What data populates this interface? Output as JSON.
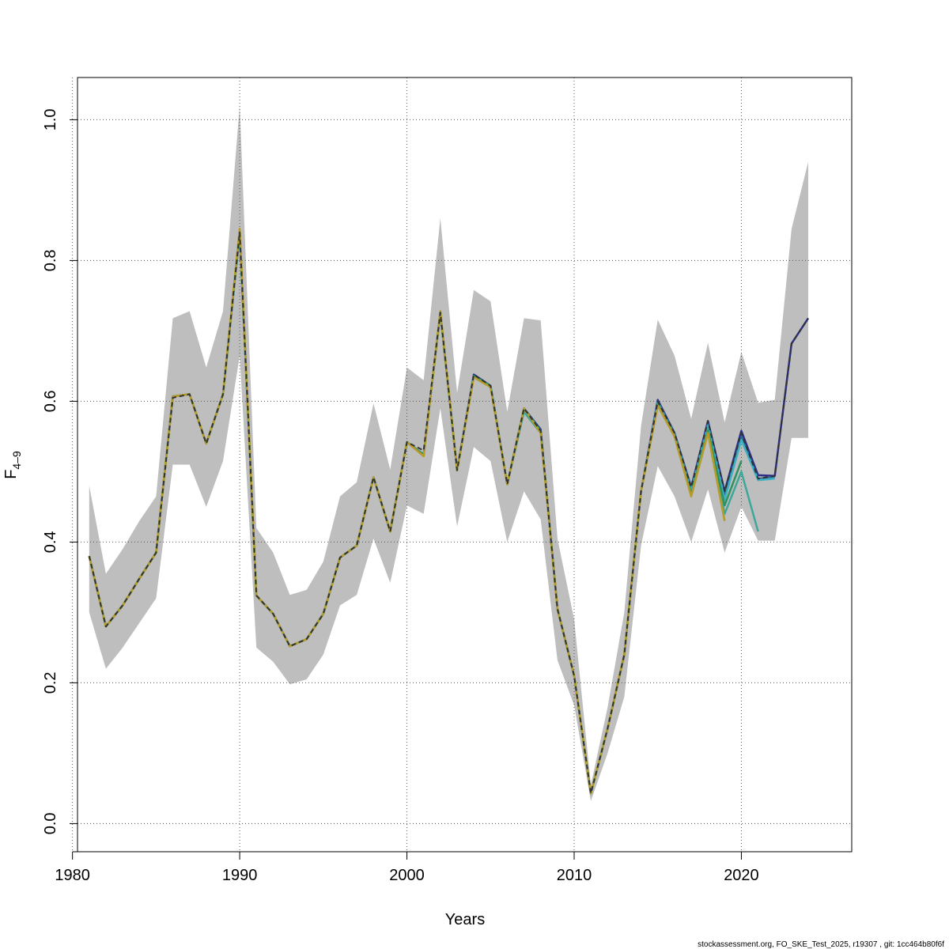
{
  "chart_data": {
    "type": "line",
    "title": "",
    "xlabel": "Years",
    "ylabel": {
      "base": "F",
      "subscript": "4–9"
    },
    "xlim": [
      1980.3,
      2026.6
    ],
    "ylim": [
      -0.04,
      1.06
    ],
    "xticks": [
      1980,
      1990,
      2000,
      2010,
      2020
    ],
    "yticks": [
      0.0,
      0.2,
      0.4,
      0.6,
      0.8,
      1.0
    ],
    "xtick_labels": [
      "1980",
      "1990",
      "2000",
      "2010",
      "2020"
    ],
    "ytick_labels": [
      "0.0",
      "0.2",
      "0.4",
      "0.6",
      "0.8",
      "1.0"
    ],
    "grid": true,
    "legend": "none",
    "footer": "stockassessment.org, FO_SKE_Test_2025, r19307 , git: 1cc464b80f6f",
    "band": {
      "color": "#bebebe",
      "x": [
        1981,
        1982,
        1983,
        1984,
        1985,
        1986,
        1987,
        1988,
        1989,
        1990,
        1991,
        1992,
        1993,
        1994,
        1995,
        1996,
        1997,
        1998,
        1999,
        2000,
        2001,
        2002,
        2003,
        2004,
        2005,
        2006,
        2007,
        2008,
        2009,
        2010,
        2011,
        2012,
        2013,
        2014,
        2015,
        2016,
        2017,
        2018,
        2019,
        2020,
        2021,
        2022,
        2023,
        2024
      ],
      "upper": [
        0.48,
        0.355,
        0.39,
        0.43,
        0.465,
        0.718,
        0.728,
        0.648,
        0.728,
        1.02,
        0.42,
        0.385,
        0.325,
        0.332,
        0.372,
        0.465,
        0.485,
        0.597,
        0.503,
        0.648,
        0.63,
        0.86,
        0.612,
        0.758,
        0.742,
        0.585,
        0.718,
        0.715,
        0.405,
        0.29,
        0.055,
        0.165,
        0.3,
        0.565,
        0.716,
        0.665,
        0.575,
        0.683,
        0.57,
        0.67,
        0.598,
        0.602,
        0.845,
        0.94
      ],
      "lower": [
        0.3,
        0.22,
        0.25,
        0.285,
        0.32,
        0.51,
        0.51,
        0.45,
        0.515,
        0.665,
        0.25,
        0.23,
        0.198,
        0.205,
        0.24,
        0.31,
        0.325,
        0.405,
        0.342,
        0.452,
        0.44,
        0.59,
        0.422,
        0.535,
        0.515,
        0.4,
        0.472,
        0.432,
        0.232,
        0.168,
        0.032,
        0.1,
        0.18,
        0.395,
        0.508,
        0.465,
        0.4,
        0.475,
        0.385,
        0.45,
        0.402,
        0.402,
        0.548,
        0.548
      ]
    },
    "series": [
      {
        "color": "#2c2e86",
        "dashed": false,
        "x": [
          1981,
          1982,
          1983,
          1984,
          1985,
          1986,
          1987,
          1988,
          1989,
          1990,
          1991,
          1992,
          1993,
          1994,
          1995,
          1996,
          1997,
          1998,
          1999,
          2000,
          2001,
          2002,
          2003,
          2004,
          2005,
          2006,
          2007,
          2008,
          2009,
          2010,
          2011,
          2012,
          2013,
          2014,
          2015,
          2016,
          2017,
          2018,
          2019,
          2020,
          2021,
          2022,
          2023,
          2024
        ],
        "y": [
          0.38,
          0.28,
          0.31,
          0.348,
          0.385,
          0.607,
          0.61,
          0.54,
          0.61,
          0.84,
          0.324,
          0.298,
          0.252,
          0.262,
          0.298,
          0.378,
          0.395,
          0.492,
          0.415,
          0.542,
          0.524,
          0.726,
          0.502,
          0.638,
          0.622,
          0.482,
          0.59,
          0.56,
          0.305,
          0.21,
          0.043,
          0.135,
          0.24,
          0.472,
          0.602,
          0.555,
          0.478,
          0.572,
          0.472,
          0.558,
          0.495,
          0.494,
          0.682,
          0.718
        ]
      },
      {
        "color": "#2b6a99",
        "dashed": false,
        "x": [
          1981,
          1982,
          1983,
          1984,
          1985,
          1986,
          1987,
          1988,
          1989,
          1990,
          1991,
          1992,
          1993,
          1994,
          1995,
          1996,
          1997,
          1998,
          1999,
          2000,
          2001,
          2002,
          2003,
          2004,
          2005,
          2006,
          2007,
          2008,
          2009,
          2010,
          2011,
          2012,
          2013,
          2014,
          2015,
          2016,
          2017,
          2018,
          2019,
          2020,
          2021,
          2022
        ],
        "y": [
          0.38,
          0.28,
          0.31,
          0.348,
          0.385,
          0.607,
          0.61,
          0.54,
          0.61,
          0.84,
          0.324,
          0.298,
          0.252,
          0.262,
          0.298,
          0.378,
          0.395,
          0.492,
          0.415,
          0.542,
          0.524,
          0.726,
          0.502,
          0.636,
          0.622,
          0.482,
          0.59,
          0.558,
          0.305,
          0.21,
          0.043,
          0.135,
          0.24,
          0.472,
          0.6,
          0.554,
          0.476,
          0.568,
          0.465,
          0.55,
          0.49,
          0.492
        ]
      },
      {
        "color": "#3cb2c2",
        "dashed": false,
        "x": [
          1981,
          1982,
          1983,
          1984,
          1985,
          1986,
          1987,
          1988,
          1989,
          1990,
          1991,
          1992,
          1993,
          1994,
          1995,
          1996,
          1997,
          1998,
          1999,
          2000,
          2001,
          2002,
          2003,
          2004,
          2005,
          2006,
          2007,
          2008,
          2009,
          2010,
          2011,
          2012,
          2013,
          2014,
          2015,
          2016,
          2017,
          2018,
          2019,
          2020,
          2021,
          2022
        ],
        "y": [
          0.38,
          0.28,
          0.31,
          0.348,
          0.385,
          0.607,
          0.61,
          0.54,
          0.61,
          0.84,
          0.324,
          0.298,
          0.252,
          0.262,
          0.298,
          0.378,
          0.395,
          0.492,
          0.415,
          0.542,
          0.524,
          0.726,
          0.502,
          0.636,
          0.622,
          0.482,
          0.588,
          0.558,
          0.305,
          0.21,
          0.043,
          0.135,
          0.24,
          0.472,
          0.598,
          0.552,
          0.472,
          0.565,
          0.46,
          0.545,
          0.488,
          0.49
        ]
      },
      {
        "color": "#3da799",
        "dashed": false,
        "x": [
          1981,
          1982,
          1983,
          1984,
          1985,
          1986,
          1987,
          1988,
          1989,
          1990,
          1991,
          1992,
          1993,
          1994,
          1995,
          1996,
          1997,
          1998,
          1999,
          2000,
          2001,
          2002,
          2003,
          2004,
          2005,
          2006,
          2007,
          2008,
          2009,
          2010,
          2011,
          2012,
          2013,
          2014,
          2015,
          2016,
          2017,
          2018,
          2019,
          2020,
          2021
        ],
        "y": [
          0.38,
          0.28,
          0.31,
          0.348,
          0.385,
          0.607,
          0.61,
          0.54,
          0.61,
          0.84,
          0.324,
          0.298,
          0.252,
          0.262,
          0.298,
          0.378,
          0.395,
          0.492,
          0.415,
          0.542,
          0.524,
          0.726,
          0.502,
          0.636,
          0.622,
          0.482,
          0.585,
          0.555,
          0.305,
          0.21,
          0.043,
          0.135,
          0.24,
          0.472,
          0.596,
          0.55,
          0.468,
          0.56,
          0.44,
          0.5,
          0.415
        ]
      },
      {
        "color": "#2e9160",
        "dashed": false,
        "x": [
          1981,
          1982,
          1983,
          1984,
          1985,
          1986,
          1987,
          1988,
          1989,
          1990,
          1991,
          1992,
          1993,
          1994,
          1995,
          1996,
          1997,
          1998,
          1999,
          2000,
          2001,
          2002,
          2003,
          2004,
          2005,
          2006,
          2007,
          2008,
          2009,
          2010,
          2011,
          2012,
          2013,
          2014,
          2015,
          2016,
          2017,
          2018,
          2019,
          2020
        ],
        "y": [
          0.38,
          0.28,
          0.31,
          0.348,
          0.385,
          0.607,
          0.61,
          0.54,
          0.61,
          0.84,
          0.324,
          0.298,
          0.252,
          0.262,
          0.298,
          0.378,
          0.395,
          0.492,
          0.415,
          0.542,
          0.524,
          0.726,
          0.502,
          0.636,
          0.622,
          0.482,
          0.59,
          0.558,
          0.305,
          0.21,
          0.043,
          0.135,
          0.24,
          0.472,
          0.596,
          0.552,
          0.468,
          0.558,
          0.452,
          0.515
        ]
      },
      {
        "color": "#7aab2e",
        "dashed": false,
        "x": [
          1981,
          1982,
          1983,
          1984,
          1985,
          1986,
          1987,
          1988,
          1989,
          1990,
          1991,
          1992,
          1993,
          1994,
          1995,
          1996,
          1997,
          1998,
          1999,
          2000,
          2001,
          2002,
          2003,
          2004,
          2005,
          2006,
          2007,
          2008,
          2009,
          2010,
          2011,
          2012,
          2013,
          2014,
          2015,
          2016,
          2017,
          2018,
          2019
        ],
        "y": [
          0.38,
          0.28,
          0.31,
          0.348,
          0.385,
          0.607,
          0.61,
          0.54,
          0.61,
          0.845,
          0.324,
          0.298,
          0.252,
          0.262,
          0.298,
          0.378,
          0.395,
          0.492,
          0.415,
          0.542,
          0.522,
          0.728,
          0.502,
          0.634,
          0.62,
          0.482,
          0.59,
          0.555,
          0.305,
          0.21,
          0.043,
          0.135,
          0.24,
          0.472,
          0.594,
          0.55,
          0.465,
          0.555,
          0.43
        ]
      },
      {
        "color": "#b89a2a",
        "dashed": false,
        "x": [
          1981,
          1982,
          1983,
          1984,
          1985,
          1986,
          1987,
          1988,
          1989,
          1990,
          1991,
          1992,
          1993,
          1994,
          1995,
          1996,
          1997,
          1998,
          1999,
          2000,
          2001,
          2002,
          2003,
          2004,
          2005,
          2006,
          2007,
          2008,
          2009,
          2010,
          2011,
          2012,
          2013,
          2014,
          2015,
          2016,
          2017,
          2018,
          2019
        ],
        "y": [
          0.38,
          0.28,
          0.31,
          0.348,
          0.385,
          0.607,
          0.61,
          0.54,
          0.61,
          0.845,
          0.324,
          0.298,
          0.252,
          0.262,
          0.298,
          0.378,
          0.395,
          0.492,
          0.415,
          0.542,
          0.522,
          0.728,
          0.502,
          0.634,
          0.62,
          0.482,
          0.59,
          0.555,
          0.305,
          0.21,
          0.043,
          0.135,
          0.24,
          0.472,
          0.594,
          0.55,
          0.465,
          0.555,
          0.43
        ]
      },
      {
        "color": "#333333",
        "dashed": true,
        "x": [
          1981,
          1982,
          1983,
          1984,
          1985,
          1986,
          1987,
          1988,
          1989,
          1990,
          1991,
          1992,
          1993,
          1994,
          1995,
          1996,
          1997,
          1998,
          1999,
          2000,
          2001,
          2002,
          2003,
          2004,
          2005,
          2006,
          2007,
          2008,
          2009,
          2010,
          2011,
          2012,
          2013,
          2014,
          2015,
          2016,
          2017,
          2018,
          2019,
          2020,
          2021,
          2022,
          2023,
          2024
        ],
        "y": [
          0.38,
          0.28,
          0.31,
          0.348,
          0.385,
          0.605,
          0.61,
          0.54,
          0.61,
          0.84,
          0.324,
          0.298,
          0.252,
          0.262,
          0.298,
          0.378,
          0.395,
          0.492,
          0.415,
          0.542,
          0.53,
          0.726,
          0.502,
          0.638,
          0.622,
          0.482,
          0.59,
          0.558,
          0.305,
          0.21,
          0.043,
          0.135,
          0.24,
          0.472,
          0.6,
          0.555,
          0.478,
          0.572,
          0.472,
          0.555,
          0.49,
          0.494,
          0.682,
          0.718
        ]
      }
    ]
  }
}
